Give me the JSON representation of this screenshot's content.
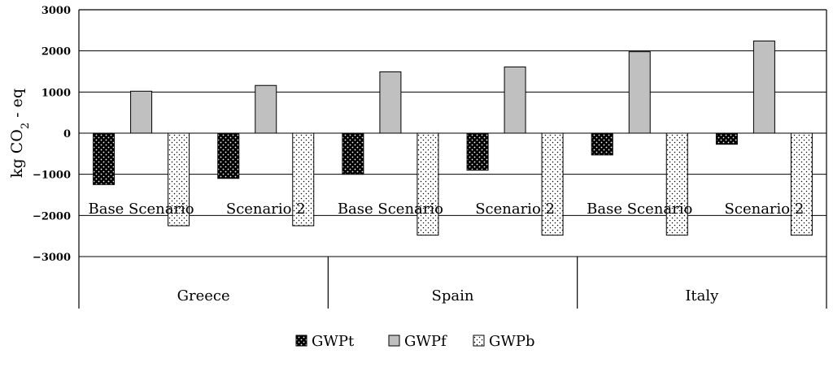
{
  "chart_data": {
    "type": "bar",
    "ylabel": "kg CO",
    "ylabel_sub": "2",
    "ylabel_suffix": " - eq",
    "ylim": [
      -3000,
      3000
    ],
    "yticks": [
      3000,
      2000,
      1000,
      0,
      -1000,
      -2000,
      -3000
    ],
    "ytick_labels": [
      "3000",
      "2000",
      "1000",
      "0",
      "-1000",
      "-2000",
      "-3000"
    ],
    "grid": true,
    "legend_position": "bottom",
    "groups": [
      "Greece",
      "Spain",
      "Italy"
    ],
    "categories": [
      "Base Scenario",
      "Scenario 2",
      "Base Scenario",
      "Scenario 2",
      "Base Scenario",
      "Scenario 2"
    ],
    "series": [
      {
        "name": "GWPt",
        "pattern": "dark-dots",
        "values": [
          -1250,
          -1100,
          -1000,
          -900,
          -530,
          -270
        ]
      },
      {
        "name": "GWPf",
        "pattern": "gray",
        "values": [
          1020,
          1160,
          1490,
          1610,
          1980,
          2240
        ]
      },
      {
        "name": "GWPb",
        "pattern": "light-dots",
        "values": [
          -2250,
          -2250,
          -2480,
          -2480,
          -2480,
          -2480
        ]
      }
    ]
  }
}
